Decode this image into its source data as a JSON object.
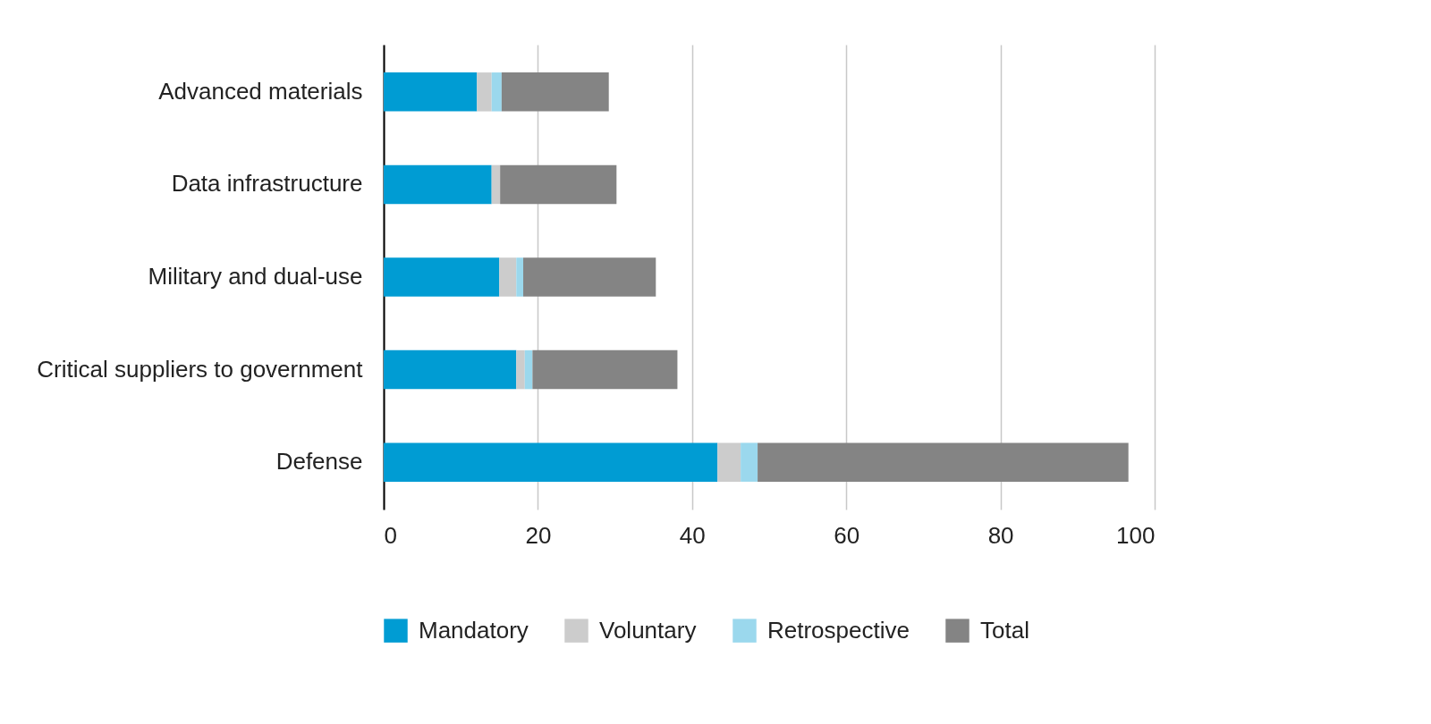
{
  "chart_data": {
    "type": "bar",
    "orientation": "horizontal",
    "stacked": true,
    "categories": [
      "Advanced materials",
      "Data infrastructure",
      "Military and dual-use",
      "Critical suppliers to government",
      "Defense"
    ],
    "series": [
      {
        "name": "Mandatory",
        "color": "#009cd3",
        "values": [
          12.1,
          14.0,
          15.0,
          17.2,
          43.3
        ]
      },
      {
        "name": "Voluntary",
        "color": "#cccccc",
        "values": [
          1.9,
          1.1,
          2.2,
          1.1,
          3.0
        ]
      },
      {
        "name": "Retrospective",
        "color": "#9bd8ed",
        "values": [
          1.3,
          0,
          0.9,
          1.0,
          2.2
        ]
      },
      {
        "name": "Total",
        "color": "#848484",
        "values": [
          13.9,
          15.1,
          17.2,
          18.8,
          48.1
        ]
      }
    ],
    "xlim": [
      0,
      100
    ],
    "xticks": [
      0,
      20,
      40,
      60,
      80,
      100
    ],
    "grid": "x",
    "legend": "bottom"
  }
}
